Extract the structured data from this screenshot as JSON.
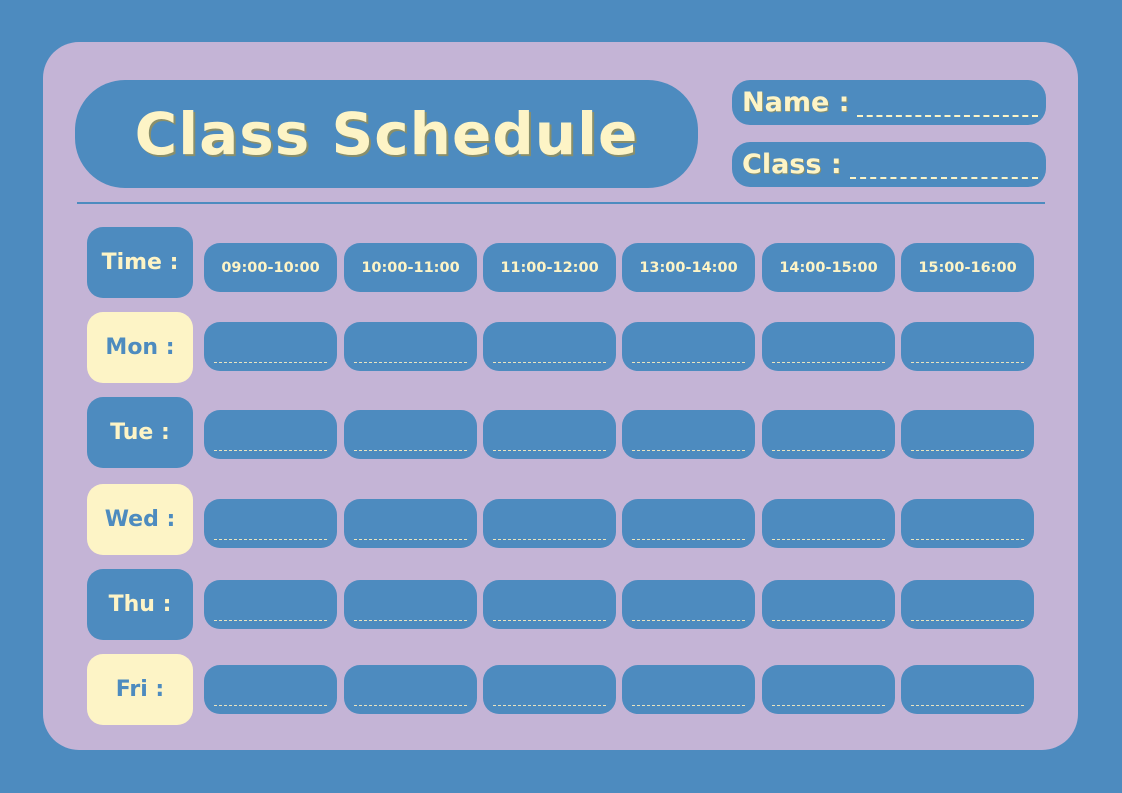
{
  "header": {
    "title": "Class Schedule"
  },
  "fields": {
    "name_label": "Name :",
    "class_label": "Class :"
  },
  "schedule": {
    "time_label": "Time :",
    "time_slots": [
      "09:00-10:00",
      "10:00-11:00",
      "11:00-12:00",
      "13:00-14:00",
      "14:00-15:00",
      "15:00-16:00"
    ],
    "days": [
      "Mon :",
      "Tue :",
      "Wed :",
      "Thu :",
      "Fri :"
    ]
  },
  "colors": {
    "background": "#4d8bbf",
    "card": "#c4b4d6",
    "accent_blue": "#4d8bbf",
    "cream": "#fdf4c6"
  }
}
